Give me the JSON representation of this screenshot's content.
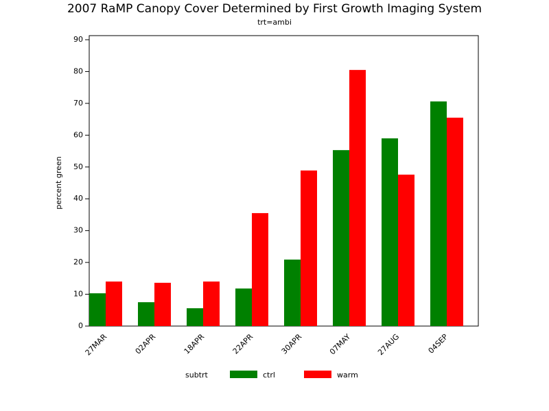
{
  "chart_data": {
    "type": "bar",
    "title": "2007 RaMP Canopy Cover Determined by First Growth Imaging System",
    "subtitle": "trt=ambi",
    "y_label": "percent green",
    "legend_title": "subtrt",
    "categories": [
      "27MAR",
      "02APR",
      "18APR",
      "22APR",
      "30APR",
      "07MAY",
      "27AUG",
      "04SEP"
    ],
    "series": [
      {
        "name": "ctrl",
        "color": "#008000",
        "values": [
          10.3,
          7.5,
          5.6,
          11.8,
          20.9,
          55.3,
          59.0,
          70.6
        ]
      },
      {
        "name": "warm",
        "color": "#ff0000",
        "values": [
          14.0,
          13.6,
          14.0,
          35.5,
          48.9,
          80.5,
          47.6,
          65.5
        ]
      }
    ],
    "ylim": [
      0,
      90
    ],
    "yticks": [
      0,
      10,
      20,
      30,
      40,
      50,
      60,
      70,
      80,
      90
    ]
  }
}
